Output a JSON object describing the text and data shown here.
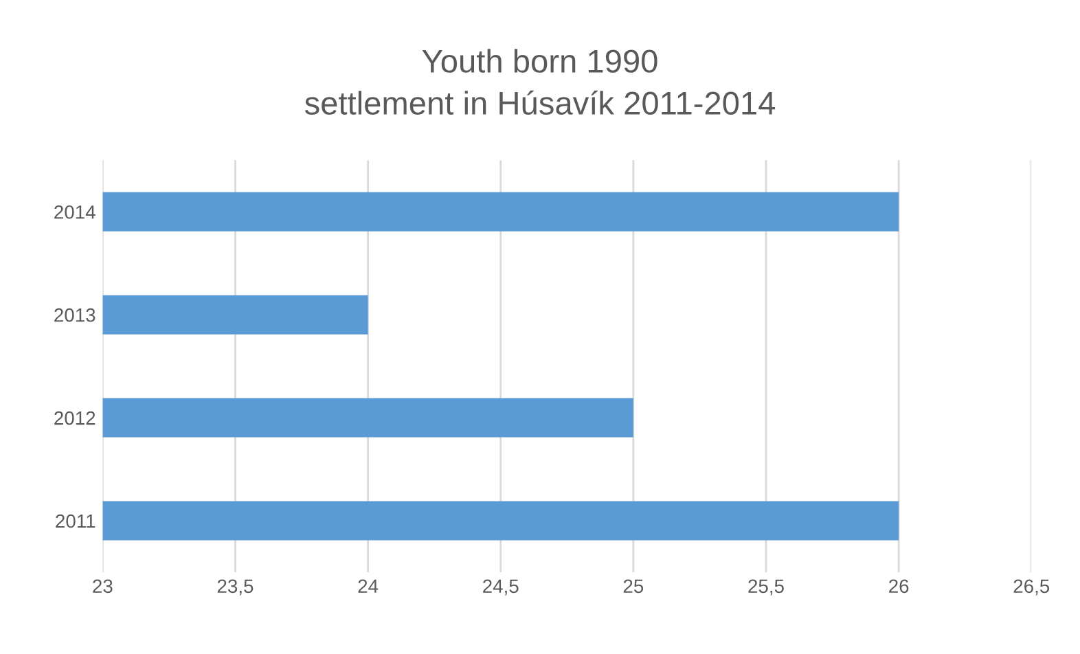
{
  "chart_data": {
    "type": "bar",
    "orientation": "horizontal",
    "title": "Youth born 1990\nsettlement in Húsavík 2011-2014",
    "categories": [
      "2014",
      "2013",
      "2012",
      "2011"
    ],
    "values": [
      26,
      24,
      25,
      26
    ],
    "color": "#5b9bd5",
    "xlim": [
      23,
      26.5
    ],
    "xticks": [
      23,
      {
        "value": 23.5,
        "label": "23,5"
      },
      24,
      {
        "value": 24.5,
        "label": "24,5"
      },
      25,
      {
        "value": 25.5,
        "label": "25,5"
      },
      26,
      {
        "value": 26.5,
        "label": "26,5"
      }
    ],
    "grid": "x"
  }
}
